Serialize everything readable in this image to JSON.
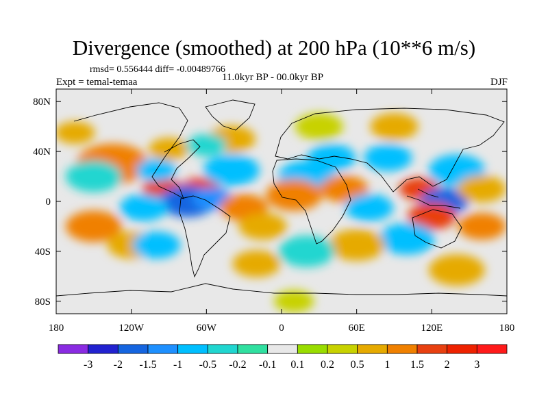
{
  "chart_data": {
    "type": "heatmap",
    "title": "Divergence (smoothed) at 200 hPa (10**6 m/s)",
    "stats_label": "rmsd= 0.556444 diff= -0.00489766",
    "experiment_label": "Expt = temal-temaa",
    "period_label": "11.0kyr BP - 00.0kyr BP",
    "season_label": "DJF",
    "x_range": [
      -180,
      180
    ],
    "y_range": [
      -90,
      90
    ],
    "x_ticks": [
      {
        "value": -180,
        "label": "180"
      },
      {
        "value": -120,
        "label": "120W"
      },
      {
        "value": -60,
        "label": "60W"
      },
      {
        "value": 0,
        "label": "0"
      },
      {
        "value": 60,
        "label": "60E"
      },
      {
        "value": 120,
        "label": "120E"
      },
      {
        "value": 180,
        "label": "180"
      }
    ],
    "y_ticks": [
      {
        "value": 80,
        "label": "80N"
      },
      {
        "value": 40,
        "label": "40N"
      },
      {
        "value": 0,
        "label": "0"
      },
      {
        "value": -40,
        "label": "40S"
      },
      {
        "value": -80,
        "label": "80S"
      }
    ],
    "contour_levels": [
      {
        "label": "-3"
      },
      {
        "label": "-2"
      },
      {
        "label": "-1.5"
      },
      {
        "label": "-1"
      },
      {
        "label": "-0.5"
      },
      {
        "label": "-0.2"
      },
      {
        "label": "-0.1"
      },
      {
        "label": "0.1"
      },
      {
        "label": "0.2"
      },
      {
        "label": "0.5"
      },
      {
        "label": "1"
      },
      {
        "label": "1.5"
      },
      {
        "label": "2"
      },
      {
        "label": "3"
      }
    ],
    "colorbar_colors": [
      "#8a2be2",
      "#2222d0",
      "#1565e0",
      "#1e90ff",
      "#00bfff",
      "#20d6d0",
      "#30e0a0",
      "#e8e8e8",
      "#99dd00",
      "#c8d200",
      "#e6aa00",
      "#f08000",
      "#e84010",
      "#ee2200",
      "#ff1a1a"
    ],
    "anomaly_regions": [
      {
        "lon": -135,
        "lat": 30,
        "value": 1.2,
        "radius": 18
      },
      {
        "lon": -90,
        "lat": 42,
        "value": 0.8,
        "radius": 10
      },
      {
        "lon": -165,
        "lat": 55,
        "value": 0.5,
        "radius": 10
      },
      {
        "lon": -95,
        "lat": 10,
        "value": 1.6,
        "radius": 10
      },
      {
        "lon": -65,
        "lat": 10,
        "value": 1.5,
        "radius": 10
      },
      {
        "lon": -75,
        "lat": 0,
        "value": -2.0,
        "radius": 14
      },
      {
        "lon": -55,
        "lat": 2,
        "value": -1.4,
        "radius": 10
      },
      {
        "lon": -110,
        "lat": -5,
        "value": -0.6,
        "radius": 12
      },
      {
        "lon": -150,
        "lat": 20,
        "value": -0.5,
        "radius": 14
      },
      {
        "lon": -100,
        "lat": 25,
        "value": -0.8,
        "radius": 10
      },
      {
        "lon": -150,
        "lat": -20,
        "value": 1.1,
        "radius": 14
      },
      {
        "lon": -120,
        "lat": -35,
        "value": 0.9,
        "radius": 12
      },
      {
        "lon": -100,
        "lat": -35,
        "value": -0.7,
        "radius": 12
      },
      {
        "lon": -30,
        "lat": -5,
        "value": 1.0,
        "radius": 12
      },
      {
        "lon": -15,
        "lat": -20,
        "value": 0.9,
        "radius": 12
      },
      {
        "lon": -40,
        "lat": 25,
        "value": -0.8,
        "radius": 14
      },
      {
        "lon": -40,
        "lat": 50,
        "value": 0.6,
        "radius": 12
      },
      {
        "lon": -60,
        "lat": 45,
        "value": -0.5,
        "radius": 10
      },
      {
        "lon": 20,
        "lat": 20,
        "value": -1.0,
        "radius": 14
      },
      {
        "lon": 10,
        "lat": 5,
        "value": 1.2,
        "radius": 14
      },
      {
        "lon": 50,
        "lat": 10,
        "value": 1.1,
        "radius": 12
      },
      {
        "lon": 70,
        "lat": -5,
        "value": -0.9,
        "radius": 12
      },
      {
        "lon": 40,
        "lat": 35,
        "value": -0.7,
        "radius": 12
      },
      {
        "lon": 30,
        "lat": 60,
        "value": 0.4,
        "radius": 12
      },
      {
        "lon": 90,
        "lat": 60,
        "value": 0.5,
        "radius": 12
      },
      {
        "lon": 85,
        "lat": 35,
        "value": -0.6,
        "radius": 12
      },
      {
        "lon": 110,
        "lat": 10,
        "value": 1.8,
        "radius": 10
      },
      {
        "lon": 130,
        "lat": 0,
        "value": -1.9,
        "radius": 12
      },
      {
        "lon": 140,
        "lat": 25,
        "value": -0.6,
        "radius": 14
      },
      {
        "lon": 120,
        "lat": -12,
        "value": 1.6,
        "radius": 12
      },
      {
        "lon": 160,
        "lat": 10,
        "value": 0.8,
        "radius": 12
      },
      {
        "lon": 160,
        "lat": -20,
        "value": 1.0,
        "radius": 12
      },
      {
        "lon": 100,
        "lat": -30,
        "value": -0.6,
        "radius": 14
      },
      {
        "lon": 60,
        "lat": -35,
        "value": 0.8,
        "radius": 14
      },
      {
        "lon": 20,
        "lat": -40,
        "value": -0.5,
        "radius": 14
      },
      {
        "lon": -20,
        "lat": -50,
        "value": 0.6,
        "radius": 12
      },
      {
        "lon": 140,
        "lat": -55,
        "value": 0.5,
        "radius": 14
      },
      {
        "lon": 10,
        "lat": -80,
        "value": 0.4,
        "radius": 10
      }
    ]
  }
}
